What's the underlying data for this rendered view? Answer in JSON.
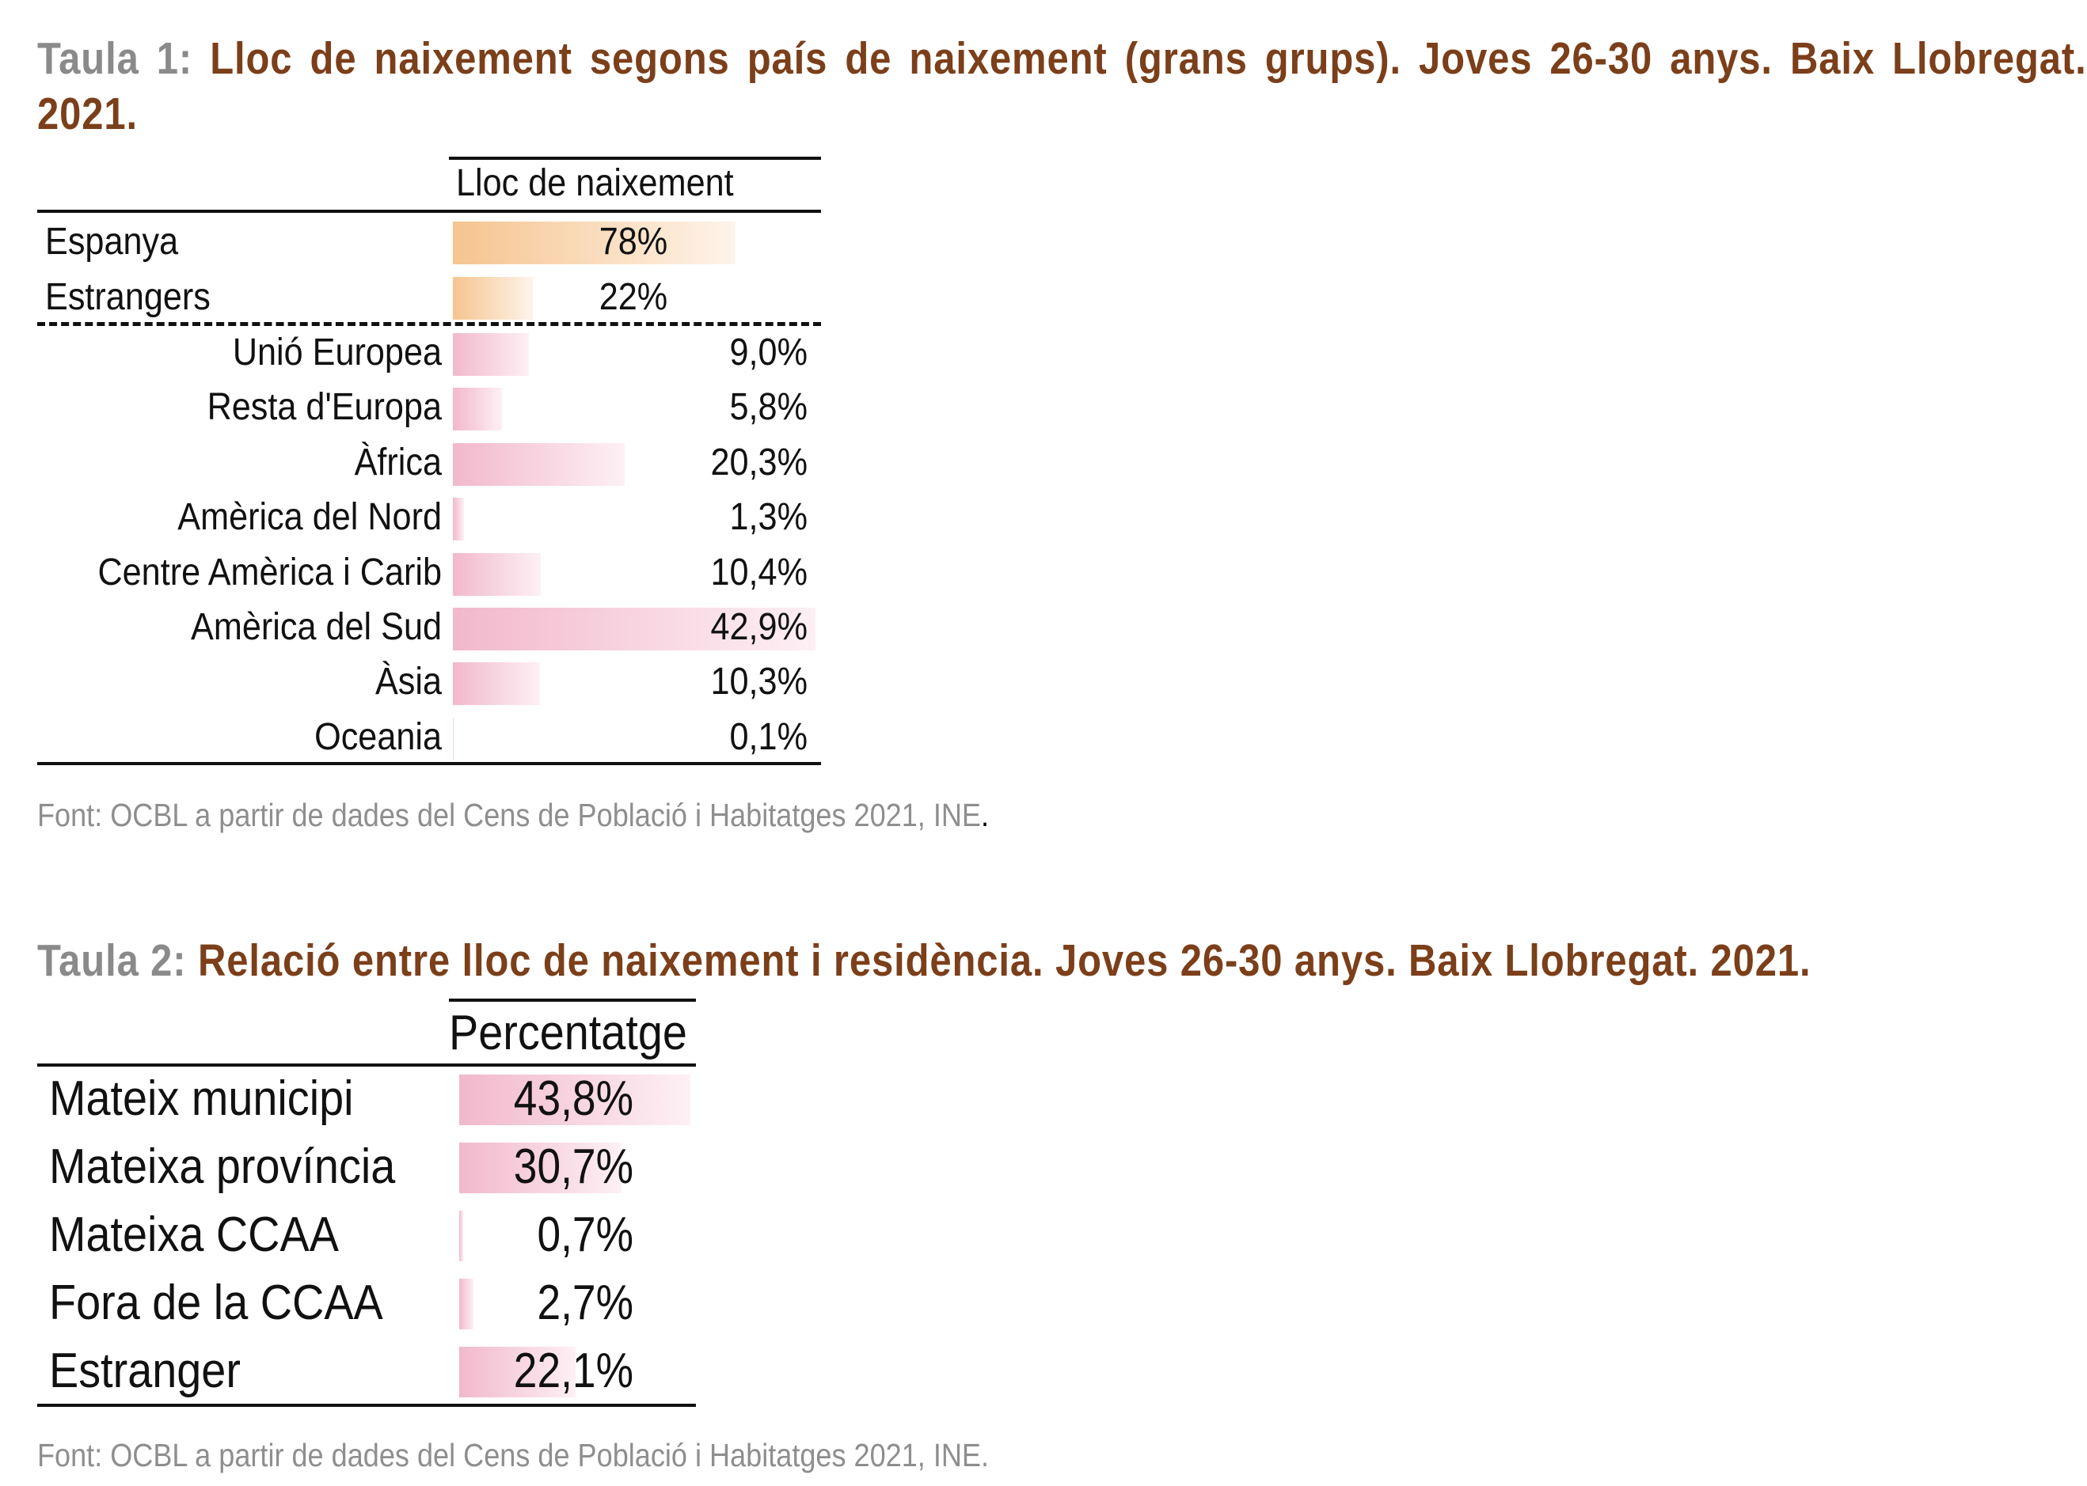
{
  "table1": {
    "title_num": "Taula 1:",
    "title_text": "Lloc de naixement segons país de naixement (grans grups). Joves 26-30 anys. Baix Llobregat. 2021.",
    "column_header": "Lloc de naixement",
    "main_rows": [
      {
        "label": "Espanya",
        "value": "78%",
        "pct": 78
      },
      {
        "label": "Estrangers",
        "value": "22%",
        "pct": 22
      }
    ],
    "sub_rows": [
      {
        "label": "Unió Europea",
        "value": "9,0%",
        "pct": 9.0
      },
      {
        "label": "Resta d'Europa",
        "value": "5,8%",
        "pct": 5.8
      },
      {
        "label": "Àfrica",
        "value": "20,3%",
        "pct": 20.3
      },
      {
        "label": "Amèrica del Nord",
        "value": "1,3%",
        "pct": 1.3
      },
      {
        "label": "Centre Amèrica i Carib",
        "value": "10,4%",
        "pct": 10.4
      },
      {
        "label": "Amèrica del Sud",
        "value": "42,9%",
        "pct": 42.9
      },
      {
        "label": "Àsia",
        "value": "10,3%",
        "pct": 10.3
      },
      {
        "label": "Oceania",
        "value": "0,1%",
        "pct": 0.1
      }
    ],
    "source": "Font: OCBL a partir de dades del Cens de Població i Habitatges 2021, INE",
    "source_end": "."
  },
  "table2": {
    "title_num": "Taula 2:",
    "title_text": "Relació entre lloc de naixement i residència. Joves 26-30 anys. Baix Llobregat. 2021.",
    "column_header": "Percentatge",
    "rows": [
      {
        "label": "Mateix municipi",
        "value": "43,8%",
        "pct": 43.8
      },
      {
        "label": "Mateixa província",
        "value": "30,7%",
        "pct": 30.7
      },
      {
        "label": "Mateixa CCAA",
        "value": "0,7%",
        "pct": 0.7
      },
      {
        "label": "Fora de la CCAA",
        "value": "2,7%",
        "pct": 2.7
      },
      {
        "label": "Estranger",
        "value": "22,1%",
        "pct": 22.1
      }
    ],
    "source": "Font: OCBL a partir de dades del Cens de Població i Habitatges 2021, INE."
  },
  "colors": {
    "title_number": "#8a8a8a",
    "title_text": "#7b3f1a",
    "bar_orange": "#f6c48f",
    "bar_pink": "#f2b8cc",
    "source_text": "#8e8e8e"
  }
}
